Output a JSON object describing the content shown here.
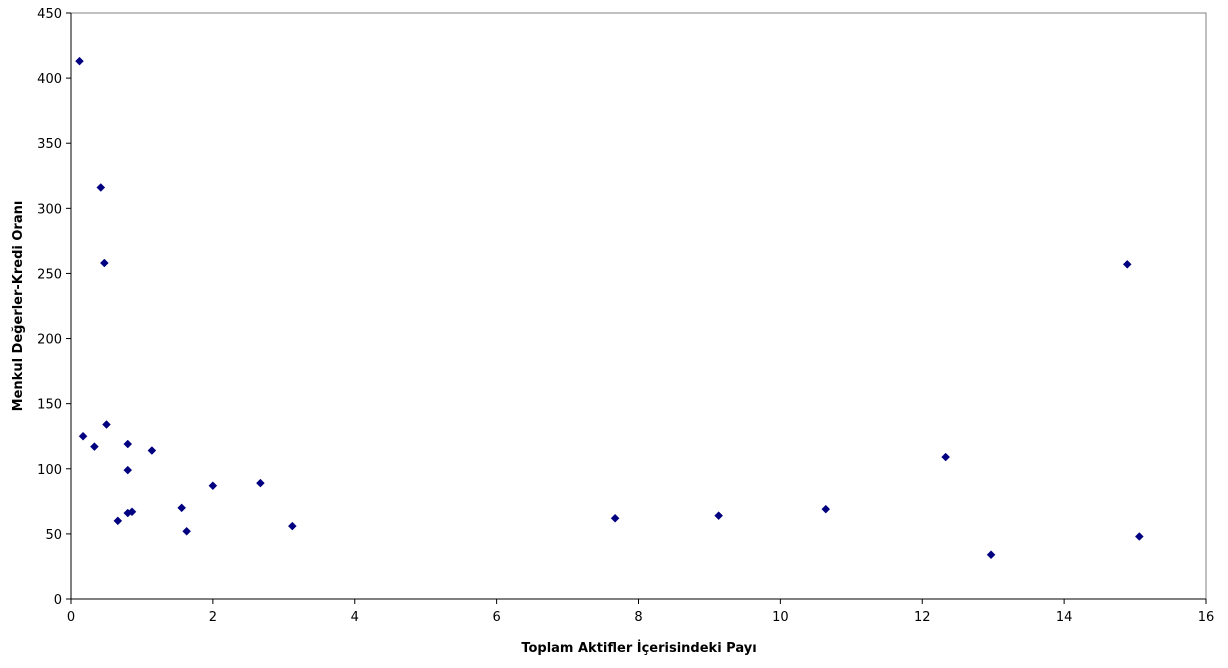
{
  "chart_data": {
    "type": "scatter",
    "title": "",
    "xlabel": "Toplam Aktifler İçerisindeki Payı",
    "ylabel": "Menkul Değerler-Kredi Oranı",
    "xlim": [
      0,
      16
    ],
    "ylim": [
      0,
      450
    ],
    "xticks": [
      0,
      2,
      4,
      6,
      8,
      10,
      12,
      14,
      16
    ],
    "yticks": [
      0,
      50,
      100,
      150,
      200,
      250,
      300,
      350,
      400,
      450
    ],
    "grid": false,
    "legend": "none",
    "marker": "diamond",
    "marker_color": "#000080",
    "points": [
      {
        "x": 0.12,
        "y": 413
      },
      {
        "x": 0.42,
        "y": 316
      },
      {
        "x": 0.47,
        "y": 258
      },
      {
        "x": 0.17,
        "y": 125
      },
      {
        "x": 0.5,
        "y": 134
      },
      {
        "x": 0.33,
        "y": 117
      },
      {
        "x": 0.8,
        "y": 119
      },
      {
        "x": 0.8,
        "y": 99
      },
      {
        "x": 1.14,
        "y": 114
      },
      {
        "x": 0.66,
        "y": 60
      },
      {
        "x": 0.8,
        "y": 66
      },
      {
        "x": 0.86,
        "y": 67
      },
      {
        "x": 1.56,
        "y": 70
      },
      {
        "x": 1.63,
        "y": 52
      },
      {
        "x": 2.0,
        "y": 87
      },
      {
        "x": 2.67,
        "y": 89
      },
      {
        "x": 3.12,
        "y": 56
      },
      {
        "x": 7.67,
        "y": 62
      },
      {
        "x": 9.13,
        "y": 64
      },
      {
        "x": 10.64,
        "y": 69
      },
      {
        "x": 12.33,
        "y": 109
      },
      {
        "x": 12.97,
        "y": 34
      },
      {
        "x": 14.89,
        "y": 257
      },
      {
        "x": 15.06,
        "y": 48
      }
    ]
  }
}
